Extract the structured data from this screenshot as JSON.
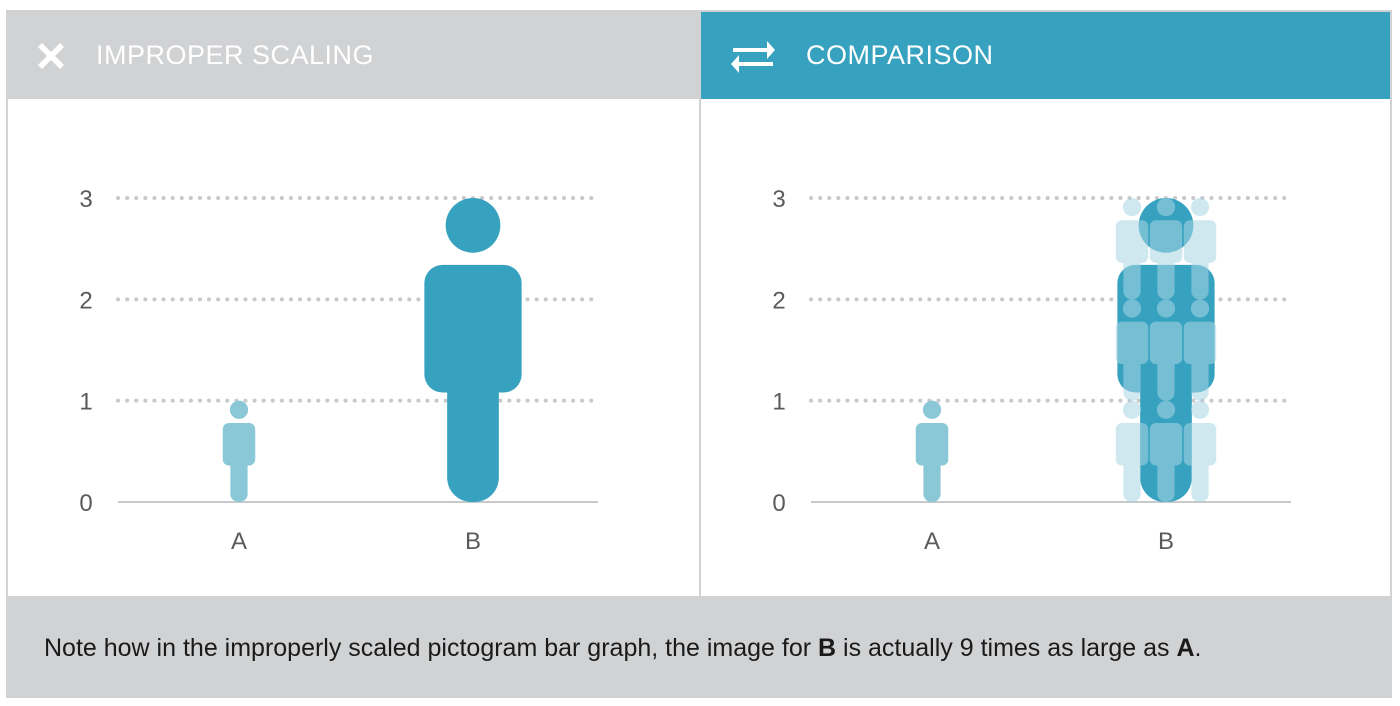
{
  "colors": {
    "accent": "#37a2c0",
    "light": "#8ac8d8",
    "lighter": "#a9d6e3",
    "header_gray": "#d1d2d4",
    "grid": "#c8c9cb"
  },
  "panels": [
    {
      "title": "IMPROPER SCALING",
      "icon": "close-x-icon"
    },
    {
      "title": "COMPARISON",
      "icon": "swap-arrows-icon"
    }
  ],
  "footer": {
    "part1": "Note how in the improperly scaled pictogram bar graph, the image for ",
    "bold1": "B",
    "part2": " is actually 9 times as large as ",
    "bold2": "A",
    "part3": "."
  },
  "chart_data": [
    {
      "type": "bar",
      "categories": [
        "A",
        "B"
      ],
      "values": [
        1,
        3
      ],
      "ylim": [
        0,
        3
      ],
      "yticks": [
        0,
        1,
        2,
        3
      ],
      "grid": true,
      "marker": "person pictogram scaled in both dimensions"
    },
    {
      "type": "bar",
      "categories": [
        "A",
        "B"
      ],
      "values": [
        1,
        3
      ],
      "ylim": [
        0,
        3
      ],
      "yticks": [
        0,
        1,
        2,
        3
      ],
      "grid": true,
      "marker": "person pictogram; B overlaid with 3x3 grid of A-size figures"
    }
  ]
}
